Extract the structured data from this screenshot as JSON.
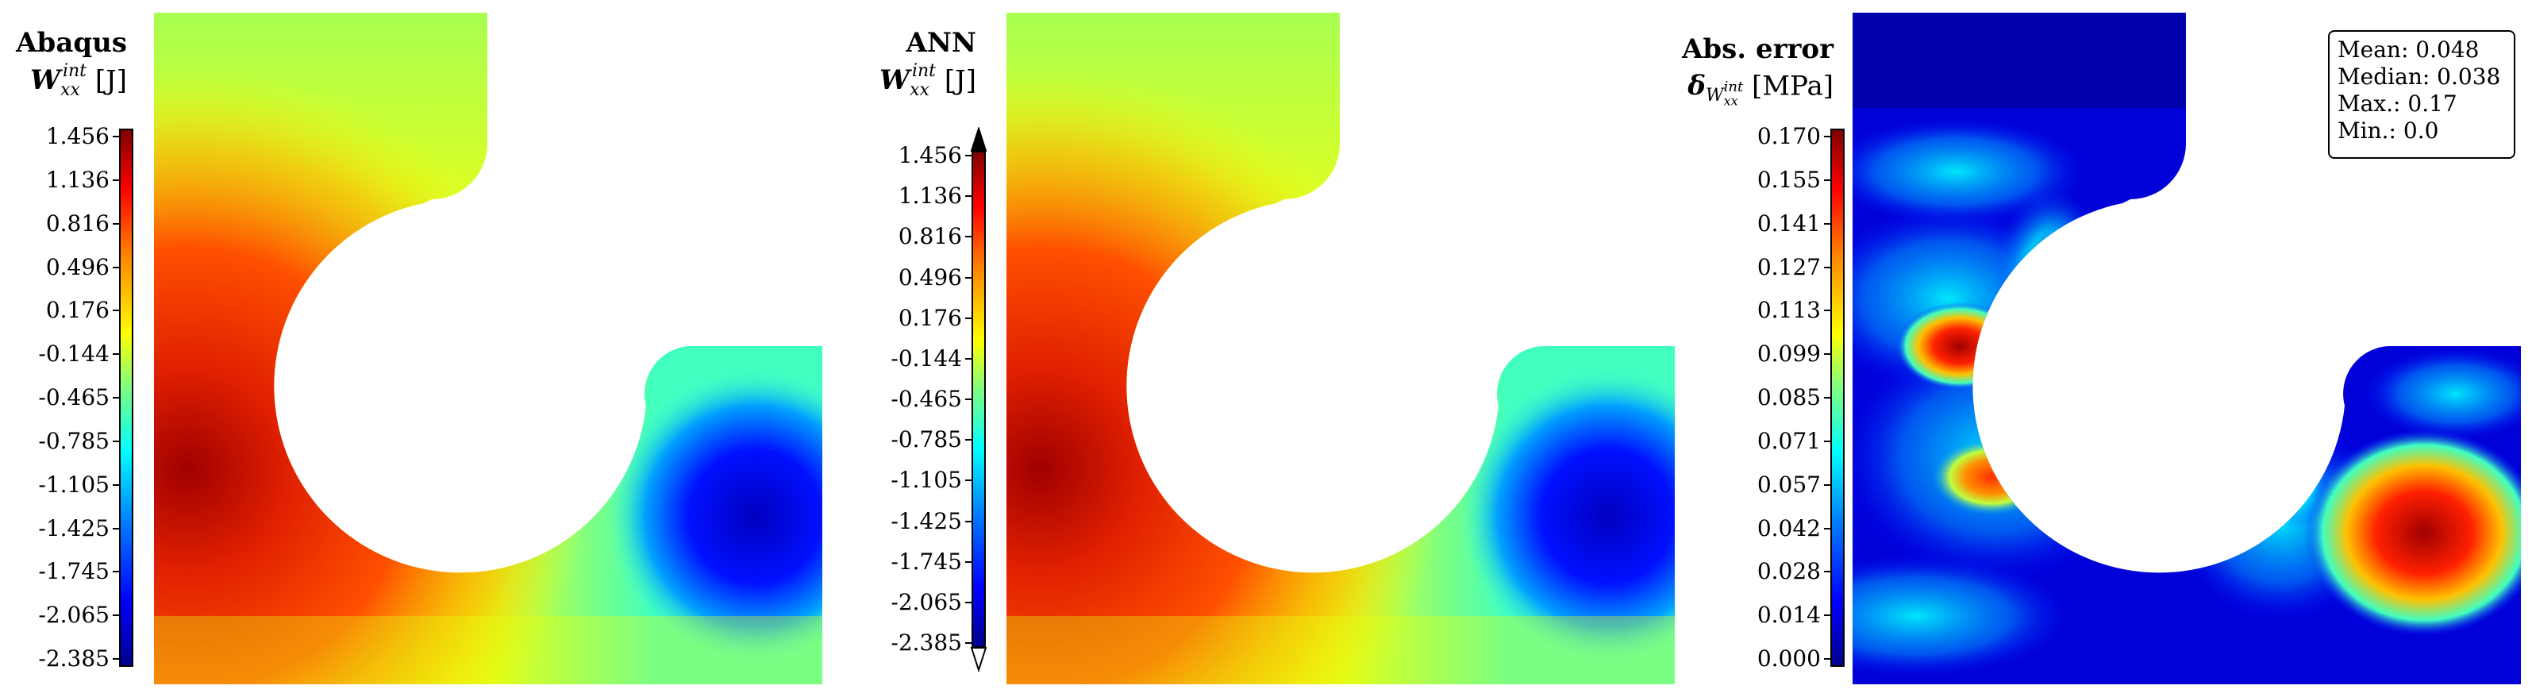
{
  "panels": [
    {
      "name": "Abaqus",
      "symbol": "W",
      "sup": "int",
      "sub": "xx",
      "unit": "[J]",
      "ticks": [
        "1.456",
        "1.136",
        "0.816",
        "0.496",
        "0.176",
        "-0.144",
        "-0.465",
        "-0.785",
        "-1.105",
        "-1.425",
        "-1.745",
        "-2.065",
        "-2.385"
      ]
    },
    {
      "name": "ANN",
      "symbol": "W",
      "sup": "int",
      "sub": "xx",
      "unit": "[J]",
      "ticks": [
        "1.456",
        "1.136",
        "0.816",
        "0.496",
        "0.176",
        "-0.144",
        "-0.465",
        "-0.785",
        "-1.105",
        "-1.425",
        "-1.745",
        "-2.065",
        "-2.385"
      ]
    },
    {
      "name": "Abs. error",
      "symbol": "δ",
      "symbol_sub": "W",
      "sup": "int",
      "sub": "xx",
      "unit": "[MPa]",
      "ticks": [
        "0.170",
        "0.155",
        "0.141",
        "0.127",
        "0.113",
        "0.099",
        "0.085",
        "0.071",
        "0.057",
        "0.042",
        "0.028",
        "0.014",
        "0.000"
      ]
    }
  ],
  "stats": {
    "mean": "Mean: 0.048",
    "median": "Median: 0.038",
    "max": "Max.: 0.17",
    "min": "Min.: 0.0"
  }
}
